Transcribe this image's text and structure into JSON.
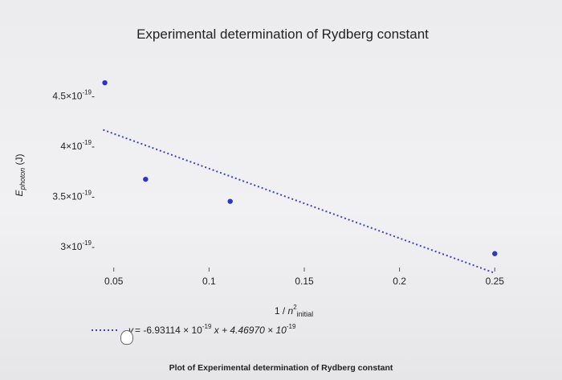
{
  "colors": {
    "point": "#2b36c9",
    "fit_line": "#3a44c4"
  },
  "fit_equation": {
    "lhs": "y",
    "equals": "= -6.93114 × 10",
    "exp1": "-19",
    "x_term": " x  + 4.46970 × 10",
    "exp2": "-19"
  },
  "caption": "Plot of Experimental determination of Rydberg constant",
  "chart_data": {
    "type": "scatter",
    "title": "Experimental determination of Rydberg constant",
    "xlabel": "1 / n² initial",
    "ylabel": "E photon (J)",
    "xlim": [
      0.04,
      0.26
    ],
    "ylim": [
      2.8e-19,
      4.75e-19
    ],
    "x_ticks": [
      {
        "value": 0.05,
        "label": "0.05"
      },
      {
        "value": 0.1,
        "label": "0.1"
      },
      {
        "value": 0.15,
        "label": "0.15"
      },
      {
        "value": 0.2,
        "label": "0.2"
      },
      {
        "value": 0.25,
        "label": "0.25"
      }
    ],
    "y_ticks": [
      {
        "value": 4.5e-19,
        "mantissa": "4.5×10",
        "exp": "-19"
      },
      {
        "value": 4e-19,
        "mantissa": "4×10",
        "exp": "-19"
      },
      {
        "value": 3.5e-19,
        "mantissa": "3.5×10",
        "exp": "-19"
      },
      {
        "value": 3e-19,
        "mantissa": "3×10",
        "exp": "-19"
      }
    ],
    "points": [
      {
        "x": 0.0453,
        "y": 4.63e-19
      },
      {
        "x": 0.0667,
        "y": 3.67e-19
      },
      {
        "x": 0.1111,
        "y": 3.45e-19
      },
      {
        "x": 0.25,
        "y": 2.93e-19
      }
    ],
    "fit": {
      "slope": -6.93114e-19,
      "intercept": 4.4697e-19,
      "x_range": [
        0.0444,
        0.25
      ]
    },
    "grid": false
  }
}
